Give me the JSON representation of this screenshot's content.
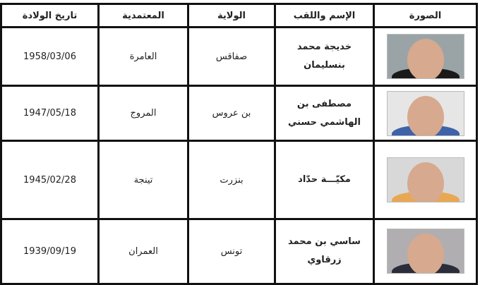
{
  "headers": {
    "photo": "الصورة",
    "name": "الإسم واللقب",
    "wilaya": "الولاية",
    "mutamadiya": "المعتمدية",
    "birth_date": "تاريخ الولادة"
  },
  "rows": [
    {
      "name": "خديجة محمد بنسليمان",
      "wilaya": "صفاقس",
      "mutamadiya": "العامرة",
      "birth_date": "1958/03/06",
      "photo_bg": "#9aa4a6",
      "scarf": "#1a1a1a"
    },
    {
      "name": "مصطفى بن الهاشمي حسني",
      "wilaya": "بن عروس",
      "mutamadiya": "المروج",
      "birth_date": "1947/05/18",
      "photo_bg": "#e6e6e6",
      "scarf": "#3f63a8"
    },
    {
      "name": "مكيّـــة حدّاد",
      "wilaya": "بنزرت",
      "mutamadiya": "تينجة",
      "birth_date": "1945/02/28",
      "photo_bg": "#d8d8d8",
      "scarf": "#e8a853"
    },
    {
      "name": "ساسي بن محمد زرقاوي",
      "wilaya": "تونس",
      "mutamadiya": "العمران",
      "birth_date": "1939/09/19",
      "photo_bg": "#b0aeb0",
      "scarf": "#2b2d3a"
    }
  ]
}
